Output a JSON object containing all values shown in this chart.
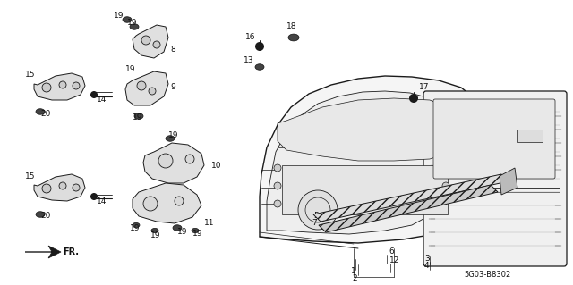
{
  "bg_color": "#ffffff",
  "diagram_code": "5G03-B8302",
  "fig_width": 6.4,
  "fig_height": 3.19,
  "dpi": 100,
  "line_color": "#1a1a1a",
  "text_color": "#111111",
  "label_fs": 6.5
}
